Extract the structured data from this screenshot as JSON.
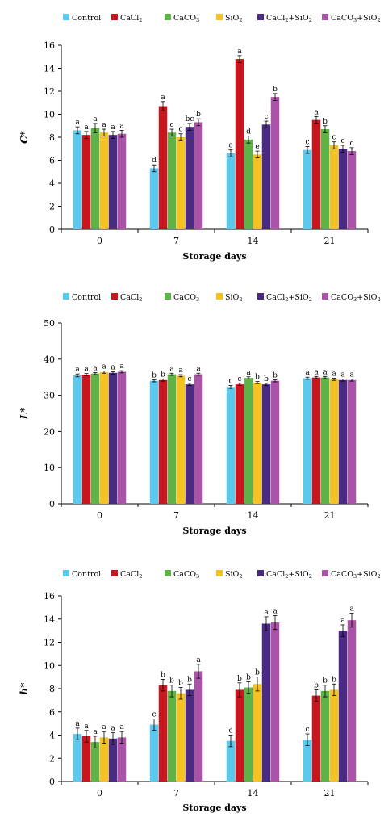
{
  "legend": [
    {
      "name": "Control",
      "base": "Control",
      "sub": ""
    },
    {
      "name": "CaCl2",
      "base": "CaCl",
      "sub": "2"
    },
    {
      "name": "CaCO3",
      "base": "CaCO",
      "sub": "3"
    },
    {
      "name": "SiO2",
      "base": "SiO",
      "sub": "2"
    },
    {
      "name": "CaCl2+SiO2",
      "base": "CaCl",
      "sub": "2",
      "base2": "+SiO",
      "sub2": "2"
    },
    {
      "name": "CaCO3+SiO2",
      "base": "CaCO",
      "sub": "3",
      "base2": "+SiO",
      "sub2": "2"
    }
  ],
  "colors": [
    "#5bc8ee",
    "#c8161e",
    "#5fb246",
    "#f5c223",
    "#4b2a83",
    "#a954a6"
  ],
  "chart_data": [
    {
      "type": "bar",
      "ylabel": "C*",
      "xlabel": "Storage days",
      "categories": [
        "0",
        "7",
        "14",
        "21"
      ],
      "ylim": [
        0,
        16
      ],
      "yticks": [
        "0",
        "2",
        "4",
        "6",
        "8",
        "10",
        "12",
        "14",
        "16"
      ],
      "legend_position": "top",
      "series": [
        {
          "name": "Control",
          "values": [
            8.6,
            5.3,
            6.6,
            6.9
          ],
          "errors": [
            0.3,
            0.3,
            0.3,
            0.3
          ],
          "labels": [
            "a",
            "d",
            "e",
            "c"
          ]
        },
        {
          "name": "CaCl2",
          "values": [
            8.2,
            10.7,
            14.8,
            9.5
          ],
          "errors": [
            0.3,
            0.4,
            0.3,
            0.3
          ],
          "labels": [
            "a",
            "a",
            "a",
            "a"
          ]
        },
        {
          "name": "CaCO3",
          "values": [
            8.8,
            8.4,
            7.8,
            8.7
          ],
          "errors": [
            0.4,
            0.3,
            0.3,
            0.3
          ],
          "labels": [
            "a",
            "c",
            "d",
            "b"
          ]
        },
        {
          "name": "SiO2",
          "values": [
            8.4,
            8.0,
            6.5,
            7.3
          ],
          "errors": [
            0.3,
            0.3,
            0.3,
            0.3
          ],
          "labels": [
            "a",
            "c",
            "e",
            "c"
          ]
        },
        {
          "name": "CaCl2+SiO2",
          "values": [
            8.2,
            8.9,
            9.1,
            7.0
          ],
          "errors": [
            0.3,
            0.3,
            0.3,
            0.3
          ],
          "labels": [
            "a",
            "bc",
            "c",
            "c"
          ]
        },
        {
          "name": "CaCO3+SiO2",
          "values": [
            8.3,
            9.3,
            11.5,
            6.8
          ],
          "errors": [
            0.3,
            0.3,
            0.3,
            0.3
          ],
          "labels": [
            "a",
            "b",
            "b",
            "c"
          ]
        }
      ]
    },
    {
      "type": "bar",
      "ylabel": "L*",
      "xlabel": "Storage days",
      "categories": [
        "0",
        "7",
        "14",
        "21"
      ],
      "ylim": [
        0,
        50
      ],
      "yticks": [
        "0",
        "10",
        "20",
        "30",
        "40",
        "50"
      ],
      "legend_position": "top",
      "series": [
        {
          "name": "Control",
          "values": [
            35.5,
            34.0,
            32.3,
            34.7
          ],
          "errors": [
            0.4,
            0.3,
            0.4,
            0.3
          ],
          "labels": [
            "a",
            "b",
            "c",
            "a"
          ]
        },
        {
          "name": "CaCl2",
          "values": [
            35.7,
            34.2,
            33.0,
            34.9
          ],
          "errors": [
            0.3,
            0.3,
            0.3,
            0.3
          ],
          "labels": [
            "a",
            "b",
            "c",
            "a"
          ]
        },
        {
          "name": "CaCO3",
          "values": [
            36.0,
            35.8,
            34.8,
            34.9
          ],
          "errors": [
            0.3,
            0.3,
            0.3,
            0.3
          ],
          "labels": [
            "a",
            "a",
            "a",
            "a"
          ]
        },
        {
          "name": "SiO2",
          "values": [
            36.4,
            35.4,
            33.5,
            34.4
          ],
          "errors": [
            0.3,
            0.3,
            0.3,
            0.3
          ],
          "labels": [
            "a",
            "a",
            "b",
            "a"
          ]
        },
        {
          "name": "CaCl2+SiO2",
          "values": [
            36.2,
            33.0,
            33.0,
            34.2
          ],
          "errors": [
            0.3,
            0.3,
            0.3,
            0.3
          ],
          "labels": [
            "a",
            "c",
            "b",
            "a"
          ]
        },
        {
          "name": "CaCO3+SiO2",
          "values": [
            36.5,
            35.8,
            34.0,
            34.2
          ],
          "errors": [
            0.3,
            0.3,
            0.3,
            0.3
          ],
          "labels": [
            "a",
            "a",
            "b",
            "a"
          ]
        }
      ]
    },
    {
      "type": "bar",
      "ylabel": "h*",
      "xlabel": "Storage days",
      "categories": [
        "0",
        "7",
        "14",
        "21"
      ],
      "ylim": [
        0,
        16
      ],
      "yticks": [
        "0",
        "2",
        "4",
        "6",
        "8",
        "10",
        "12",
        "14",
        "16"
      ],
      "legend_position": "top",
      "series": [
        {
          "name": "Control",
          "values": [
            4.1,
            4.9,
            3.5,
            3.6
          ],
          "errors": [
            0.5,
            0.5,
            0.5,
            0.5
          ],
          "labels": [
            "a",
            "c",
            "c",
            "c"
          ]
        },
        {
          "name": "CaCl2",
          "values": [
            3.9,
            8.3,
            7.9,
            7.4
          ],
          "errors": [
            0.5,
            0.5,
            0.6,
            0.5
          ],
          "labels": [
            "a",
            "b",
            "b",
            "b"
          ]
        },
        {
          "name": "CaCO3",
          "values": [
            3.4,
            7.8,
            8.1,
            7.8
          ],
          "errors": [
            0.5,
            0.5,
            0.5,
            0.5
          ],
          "labels": [
            "a",
            "b",
            "b",
            "b"
          ]
        },
        {
          "name": "SiO2",
          "values": [
            3.8,
            7.6,
            8.4,
            7.9
          ],
          "errors": [
            0.5,
            0.5,
            0.6,
            0.5
          ],
          "labels": [
            "a",
            "b",
            "b",
            "b"
          ]
        },
        {
          "name": "CaCl2+SiO2",
          "values": [
            3.7,
            7.9,
            13.6,
            13.0
          ],
          "errors": [
            0.5,
            0.5,
            0.6,
            0.5
          ],
          "labels": [
            "a",
            "b",
            "a",
            "a"
          ]
        },
        {
          "name": "CaCO3+SiO2",
          "values": [
            3.8,
            9.5,
            13.7,
            13.9
          ],
          "errors": [
            0.5,
            0.6,
            0.6,
            0.6
          ],
          "labels": [
            "a",
            "a",
            "a",
            "a"
          ]
        }
      ]
    }
  ]
}
